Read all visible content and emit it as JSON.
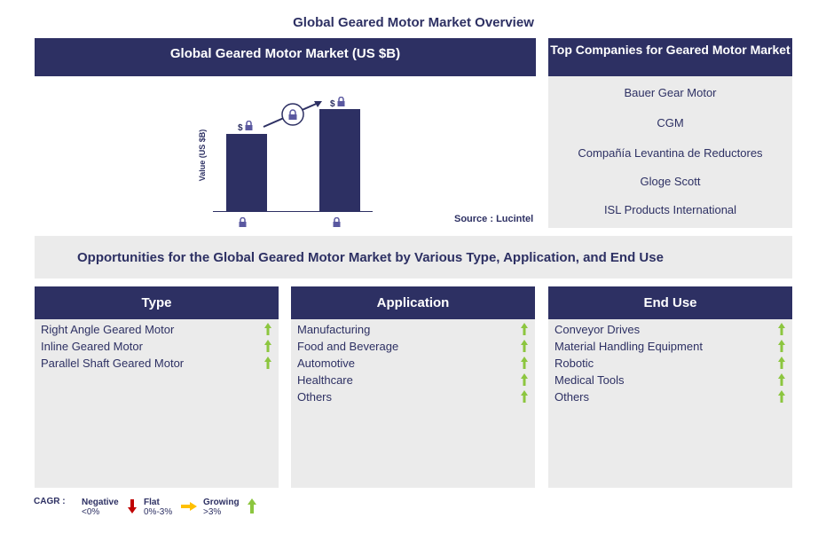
{
  "title": "Global Geared Motor Market Overview",
  "market": {
    "header": "Global Geared Motor Market (US $B)",
    "ylabel": "Value (US $B)",
    "source": "Source : Lucintel",
    "bar_prefix": "$"
  },
  "chart_data": {
    "type": "bar",
    "title": "Global Geared Motor Market (US $B)",
    "ylabel": "Value (US $B)",
    "categories": [
      "locked",
      "locked"
    ],
    "values": [
      null,
      null
    ],
    "relative_heights": [
      0.75,
      0.94
    ],
    "note": "values locked"
  },
  "companies": {
    "header": "Top Companies for Geared Motor Market",
    "items": [
      "Bauer Gear Motor",
      "CGM",
      "Compañía Levantina de Reductores",
      "Gloge Scott",
      "ISL Products International"
    ]
  },
  "opportunities": "Opportunities for the Global Geared Motor Market by Various Type, Application, and End Use",
  "columns": [
    {
      "header": "Type",
      "items": [
        "Right Angle Geared Motor",
        "Inline Geared Motor",
        "Parallel Shaft Geared Motor"
      ]
    },
    {
      "header": "Application",
      "items": [
        "Manufacturing",
        "Food and Beverage",
        "Automotive",
        "Healthcare",
        "Others"
      ]
    },
    {
      "header": "End Use",
      "items": [
        "Conveyor Drives",
        "Material Handling Equipment",
        "Robotic",
        "Medical Tools",
        "Others"
      ]
    }
  ],
  "legend": {
    "label": "CAGR :",
    "negative": "Negative",
    "negative_range": "<0%",
    "flat": "Flat",
    "flat_range": "0%-3%",
    "growing": "Growing",
    "growing_range": ">3%"
  },
  "colors": {
    "navy": "#2d3063",
    "gray": "#ebebeb",
    "green": "#8cc63f",
    "red": "#c00000",
    "yellow": "#ffc000"
  }
}
